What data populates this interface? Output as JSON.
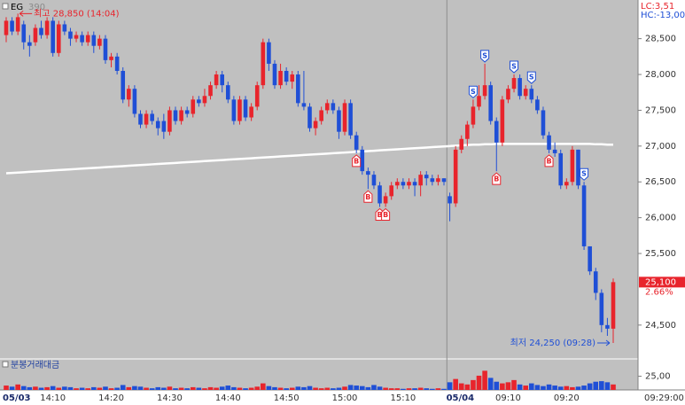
{
  "chart_data": {
    "type": "candlestick",
    "title": "EG",
    "subtitle": "390",
    "lc_label": "LC:3,51",
    "hc_label": "HC:-13,00",
    "time_label": "09:29:00",
    "up_color": "#e8242c",
    "down_color": "#1f4fd6",
    "categories": [
      "05/03",
      null,
      null,
      null,
      null,
      null,
      null,
      null,
      "14:10",
      null,
      null,
      null,
      null,
      null,
      null,
      null,
      null,
      null,
      "14:20",
      null,
      null,
      null,
      null,
      null,
      null,
      null,
      null,
      null,
      "14:30",
      null,
      null,
      null,
      null,
      null,
      null,
      null,
      null,
      null,
      "14:40",
      null,
      null,
      null,
      null,
      null,
      null,
      null,
      null,
      null,
      "14:50",
      null,
      null,
      null,
      null,
      null,
      null,
      null,
      null,
      null,
      "15:00",
      null,
      null,
      null,
      null,
      null,
      null,
      null,
      null,
      null,
      "15:10",
      null,
      null,
      null,
      null,
      null,
      null,
      null,
      "05/04",
      null,
      null,
      null,
      null,
      null,
      null,
      null,
      null,
      null,
      "09:10",
      null,
      null,
      null,
      null,
      null,
      null,
      null,
      null,
      null,
      "09:20",
      null,
      null,
      null,
      null,
      null,
      null,
      null,
      null
    ],
    "open": [
      28550,
      28750,
      28600,
      28700,
      28450,
      28450,
      28650,
      28550,
      28750,
      28300,
      28700,
      28600,
      28500,
      28550,
      28450,
      28550,
      28400,
      28500,
      28200,
      28250,
      28050,
      27650,
      27800,
      27450,
      27300,
      27450,
      27350,
      27350,
      27200,
      27500,
      27350,
      27500,
      27450,
      27650,
      27600,
      27700,
      27850,
      28000,
      27850,
      27650,
      27350,
      27650,
      27400,
      27550,
      27850,
      28450,
      28150,
      27850,
      28050,
      27900,
      28000,
      27600,
      27550,
      27250,
      27350,
      27500,
      27600,
      27500,
      27200,
      27600,
      27150,
      26950,
      26650,
      26600,
      26450,
      26200,
      26300,
      26450,
      26500,
      26450,
      26500,
      26450,
      26600,
      26550,
      26500,
      26550,
      26300,
      26200,
      26950,
      27100,
      27300,
      27550,
      27700,
      27850,
      27350,
      27050,
      27650,
      27800,
      27950,
      27700,
      27800,
      27650,
      27500,
      27150,
      26950,
      26900,
      26450,
      26500,
      26950,
      26450,
      25600,
      25250,
      24950,
      24500,
      24450
    ],
    "high": [
      28800,
      28800,
      28850,
      28750,
      28550,
      28700,
      28750,
      28800,
      28800,
      28750,
      28750,
      28650,
      28600,
      28600,
      28600,
      28600,
      28550,
      28550,
      28300,
      28300,
      28100,
      27850,
      27850,
      27500,
      27500,
      27500,
      27400,
      27450,
      27550,
      27550,
      27550,
      27550,
      27700,
      27700,
      27800,
      27900,
      28050,
      28050,
      27900,
      27700,
      27700,
      27700,
      27600,
      27900,
      28500,
      28500,
      28200,
      28150,
      28100,
      28050,
      28050,
      28050,
      27600,
      27400,
      27550,
      27650,
      27650,
      27550,
      27650,
      27650,
      27200,
      27000,
      26700,
      26650,
      26500,
      26350,
      26500,
      26550,
      26550,
      26550,
      26550,
      26650,
      26650,
      26600,
      26600,
      26550,
      26350,
      27000,
      27150,
      27350,
      27650,
      27850,
      28150,
      27900,
      27400,
      27700,
      27850,
      28000,
      28000,
      27850,
      27850,
      27700,
      27550,
      27200,
      27050,
      26950,
      26550,
      27000,
      26950,
      26500,
      25600,
      25300,
      25000,
      24600,
      25150
    ],
    "low": [
      28450,
      28550,
      28550,
      28350,
      28250,
      28400,
      28500,
      28500,
      28250,
      28250,
      28550,
      28400,
      28450,
      28400,
      28400,
      28300,
      28350,
      28150,
      28100,
      28000,
      27600,
      27550,
      27400,
      27250,
      27250,
      27300,
      27150,
      27100,
      27150,
      27300,
      27300,
      27400,
      27400,
      27550,
      27550,
      27650,
      27800,
      27750,
      27600,
      27300,
      27300,
      27350,
      27350,
      27500,
      27800,
      28050,
      27800,
      27800,
      27850,
      27800,
      27550,
      27500,
      27200,
      27150,
      27300,
      27450,
      27450,
      27100,
      27150,
      27100,
      26900,
      26600,
      26400,
      26400,
      26150,
      26150,
      26250,
      26400,
      26400,
      26400,
      26300,
      26300,
      26450,
      26450,
      26450,
      26450,
      25950,
      26150,
      26900,
      27000,
      27250,
      27500,
      27650,
      27300,
      26650,
      27000,
      27600,
      27750,
      27650,
      27650,
      27600,
      27450,
      27100,
      26900,
      26850,
      26400,
      26400,
      26450,
      26400,
      25550,
      25200,
      24850,
      24400,
      24350,
      24250
    ],
    "close": [
      28750,
      28600,
      28800,
      28450,
      28400,
      28650,
      28550,
      28750,
      28300,
      28700,
      28600,
      28500,
      28550,
      28450,
      28550,
      28400,
      28500,
      28200,
      28250,
      28050,
      27650,
      27800,
      27450,
      27300,
      27450,
      27350,
      27250,
      27200,
      27500,
      27350,
      27500,
      27450,
      27650,
      27600,
      27700,
      27850,
      28000,
      27850,
      27650,
      27350,
      27650,
      27400,
      27550,
      27850,
      28450,
      28150,
      27850,
      28050,
      27900,
      28000,
      27600,
      27550,
      27250,
      27350,
      27500,
      27600,
      27500,
      27200,
      27600,
      27150,
      26950,
      26650,
      26600,
      26450,
      26200,
      26300,
      26450,
      26500,
      26450,
      26500,
      26450,
      26600,
      26550,
      26500,
      26550,
      26500,
      26200,
      26950,
      27100,
      27300,
      27550,
      27700,
      27850,
      27350,
      27050,
      27650,
      27800,
      27950,
      27700,
      27800,
      27650,
      27500,
      27150,
      26950,
      26900,
      26450,
      26500,
      26950,
      26450,
      25600,
      25250,
      24950,
      24500,
      24450,
      25100
    ],
    "ma": {
      "color": "#ffffff",
      "values": [
        26620,
        26625,
        26630,
        26635,
        26640,
        26645,
        26650,
        26655,
        26660,
        26665,
        26670,
        26675,
        26680,
        26685,
        26690,
        26695,
        26700,
        26705,
        26710,
        26715,
        26720,
        26725,
        26730,
        26735,
        26740,
        26745,
        26750,
        26755,
        26760,
        26765,
        26770,
        26775,
        26780,
        26785,
        26790,
        26795,
        26800,
        26805,
        26810,
        26815,
        26820,
        26825,
        26830,
        26835,
        26840,
        26845,
        26850,
        26855,
        26860,
        26865,
        26870,
        26875,
        26880,
        26885,
        26890,
        26895,
        26900,
        26905,
        26910,
        26915,
        26920,
        26925,
        26930,
        26935,
        26940,
        26945,
        26950,
        26955,
        26960,
        26965,
        26970,
        26975,
        26980,
        26985,
        26990,
        26995,
        27000,
        27005,
        27010,
        27015,
        27020,
        27020,
        27025,
        27025,
        27030,
        27030,
        27030,
        27030,
        27030,
        27030,
        27030,
        27030,
        27030,
        27030,
        27030,
        27030,
        27030,
        27030,
        27030,
        27030,
        27030,
        27025,
        27025,
        27020,
        27020
      ]
    },
    "ylim": [
      24040,
      29040
    ],
    "yticks": [
      {
        "value": 24500,
        "label": "24,500"
      },
      {
        "value": 25500,
        "label": "25,500"
      },
      {
        "value": 26000,
        "label": "26,000"
      },
      {
        "value": 26500,
        "label": "26,500"
      },
      {
        "value": 27000,
        "label": "27,000"
      },
      {
        "value": 27500,
        "label": "27,500"
      },
      {
        "value": 28000,
        "label": "28,000"
      },
      {
        "value": 28500,
        "label": "28,500"
      }
    ],
    "high_annotation": {
      "index": 2,
      "text": "최고 28,850 (14:04)"
    },
    "low_annotation": {
      "index": 104,
      "text": "최저 24,250 (09:28)"
    },
    "current": {
      "value": 25100,
      "label": "25,100",
      "change": "2.66%"
    },
    "signals": [
      {
        "index": 60,
        "label": "B"
      },
      {
        "index": 62,
        "label": "B"
      },
      {
        "index": 64,
        "label": "B"
      },
      {
        "index": 65,
        "label": "B"
      },
      {
        "index": 80,
        "label": "S"
      },
      {
        "index": 82,
        "label": "S"
      },
      {
        "index": 84,
        "label": "B"
      },
      {
        "index": 87,
        "label": "S"
      },
      {
        "index": 90,
        "label": "S"
      },
      {
        "index": 93,
        "label": "B"
      },
      {
        "index": 99,
        "label": "S"
      }
    ],
    "volume": {
      "title": "분봉거래대금",
      "ylim": [
        0,
        55
      ],
      "yticks": [
        {
          "value": 25,
          "label": "25,00"
        }
      ],
      "values": [
        8,
        6,
        10,
        7,
        5,
        6,
        4,
        5,
        7,
        4,
        6,
        5,
        3,
        4,
        3,
        5,
        4,
        6,
        3,
        4,
        9,
        5,
        7,
        6,
        4,
        3,
        5,
        4,
        6,
        3,
        4,
        3,
        5,
        4,
        3,
        5,
        4,
        6,
        8,
        5,
        4,
        3,
        4,
        6,
        12,
        7,
        5,
        4,
        3,
        4,
        6,
        5,
        7,
        4,
        3,
        4,
        3,
        4,
        6,
        9,
        8,
        7,
        5,
        9,
        6,
        4,
        3,
        3,
        2,
        3,
        3,
        4,
        3,
        2,
        3,
        2,
        14,
        20,
        12,
        10,
        18,
        26,
        35,
        22,
        15,
        12,
        14,
        18,
        10,
        8,
        12,
        9,
        7,
        10,
        8,
        6,
        7,
        5,
        6,
        8,
        12,
        15,
        16,
        14,
        10
      ]
    }
  }
}
